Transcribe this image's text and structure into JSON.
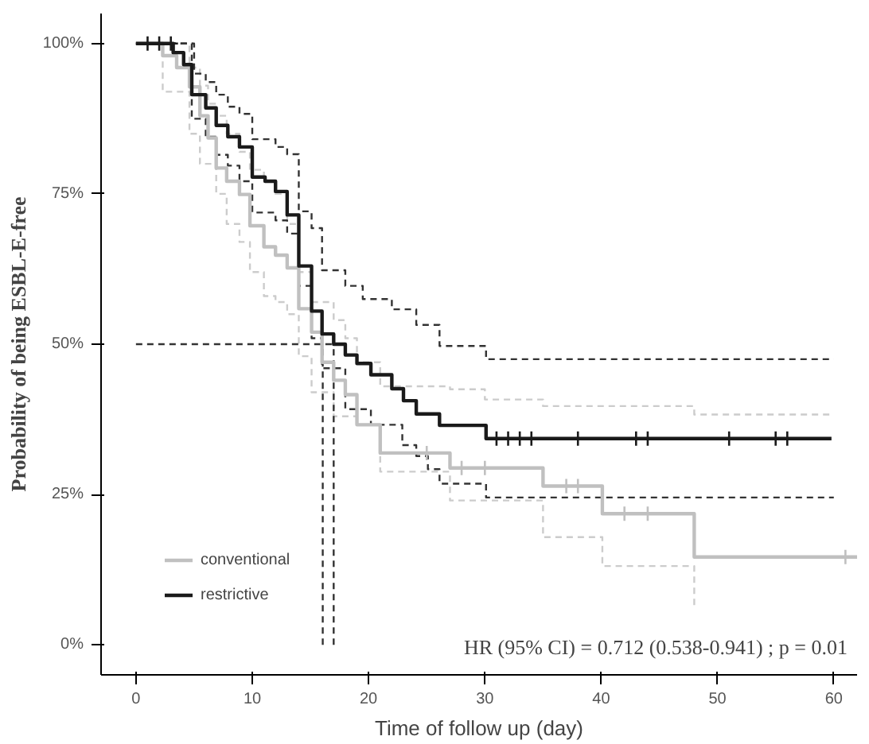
{
  "chart_data": {
    "type": "step",
    "ylabel": "Probability of being ESBL-E-free",
    "xlabel": "Time of follow up (day)",
    "xlim": [
      -3,
      62
    ],
    "ylim": [
      -5,
      105
    ],
    "xticks": [
      0,
      10,
      20,
      30,
      40,
      50,
      60
    ],
    "yticks": [
      {
        "value": 0,
        "label": "0%"
      },
      {
        "value": 25,
        "label": "25%"
      },
      {
        "value": 50,
        "label": "50%"
      },
      {
        "value": 75,
        "label": "75%"
      },
      {
        "value": 100,
        "label": "100%"
      }
    ],
    "grid": false,
    "legend": "bottom left",
    "annotations": [
      "HR (95% CI) = 0.712 (0.538-0.941) ; p = 0.01"
    ],
    "series": [
      {
        "color": "#cccccc",
        "line_style": "dashed",
        "x": [
          0,
          4.6,
          5.5,
          6.2,
          6.9,
          7.8,
          8.9,
          9.8,
          11,
          12,
          13,
          14,
          15.1,
          17,
          18,
          19,
          21,
          27,
          30,
          35,
          48,
          60
        ],
        "values": [
          100,
          96,
          93,
          90,
          88,
          85,
          82,
          79,
          77,
          75,
          70,
          62,
          57,
          54,
          51,
          47,
          43,
          42.5,
          40.8,
          39.7,
          38.3,
          38.3
        ]
      },
      {
        "color": "#cccccc",
        "line_style": "dashed",
        "x": [
          0,
          2.3,
          4.6,
          5.5,
          6.9,
          7.8,
          8.9,
          9.8,
          11,
          12,
          13,
          14,
          15.1,
          17,
          19,
          21,
          27,
          35,
          40.1,
          48,
          48.01
        ],
        "values": [
          100,
          92,
          85,
          80,
          75,
          70,
          67,
          62,
          58,
          57,
          55,
          48,
          42,
          38,
          36.6,
          28.8,
          24,
          17.9,
          13.1,
          6.2,
          6.2
        ]
      },
      {
        "color": "#333333",
        "line_style": "dashed",
        "x": [
          0,
          5.0,
          6.0,
          6.9,
          7.9,
          8.9,
          10.0,
          12.0,
          13.0,
          14.0,
          15.1,
          16.0,
          18.0,
          19.5,
          22.0,
          24.1,
          26.1,
          30.1,
          60
        ],
        "values": [
          100,
          95,
          93.6,
          91.5,
          89.5,
          88.3,
          84.1,
          82.8,
          81.6,
          72.1,
          69.3,
          62.3,
          59.7,
          57.5,
          55.8,
          53.2,
          49.7,
          47.5,
          47.5
        ]
      },
      {
        "color": "#333333",
        "line_style": "dashed",
        "x": [
          0,
          4.8,
          6.0,
          6.9,
          7.9,
          8.9,
          10.0,
          12.0,
          13.0,
          14.0,
          15.1,
          16.0,
          18.0,
          20.2,
          22.9,
          24.1,
          25.1,
          26.1,
          30.1,
          60
        ],
        "values": [
          100,
          87.5,
          84.5,
          81.5,
          79.7,
          77.1,
          71.9,
          70.6,
          68.4,
          59.7,
          51,
          46,
          39.2,
          36.6,
          33.2,
          31.4,
          29.2,
          26.8,
          24.5,
          24.5
        ]
      },
      {
        "type": "line",
        "color": "#333333",
        "line_style": "dashed",
        "x": [
          0,
          17
        ],
        "values": [
          50,
          50
        ]
      },
      {
        "type": "line",
        "color": "#333333",
        "line_style": "dashed",
        "x": [
          16.06,
          16.06
        ],
        "values": [
          0,
          50
        ]
      },
      {
        "type": "line",
        "color": "#333333",
        "line_style": "dashed",
        "x": [
          17.0,
          17.0
        ],
        "values": [
          0,
          50
        ]
      },
      {
        "name": "conventional",
        "color": "#c0c0c0",
        "line_style": "solid",
        "x": [
          0,
          2.3,
          3.5,
          4.6,
          5.5,
          6.2,
          6.9,
          7.8,
          8.9,
          9.8,
          11,
          12,
          13,
          14,
          15.1,
          16,
          17,
          18,
          19,
          21,
          27,
          35,
          40.1,
          48,
          62
        ],
        "values": [
          100,
          98,
          96,
          92.8,
          88,
          84.3,
          79.3,
          77.1,
          74.9,
          69.7,
          66.2,
          64.8,
          62.7,
          55.9,
          52,
          47,
          44,
          41.6,
          36.6,
          31.9,
          29.4,
          26.4,
          21.8,
          14.6,
          14.6
        ]
      },
      {
        "name": "restrictive",
        "color": "#1a1a1a",
        "line_style": "solid",
        "x": [
          0,
          3.2,
          4.1,
          4.8,
          6.0,
          6.9,
          7.9,
          8.9,
          10.0,
          11.1,
          12.0,
          13.0,
          14.0,
          15.1,
          16.0,
          17.0,
          18.0,
          19.0,
          20.2,
          22.0,
          23.0,
          24.1,
          26.1,
          30.1,
          59.8
        ],
        "values": [
          100,
          98.5,
          96.5,
          91.5,
          89.3,
          86.4,
          84.5,
          82.8,
          77.8,
          77.1,
          75.4,
          71.5,
          63,
          55.5,
          51.7,
          50,
          48.2,
          46.8,
          44.9,
          42.6,
          40.6,
          38.4,
          36.5,
          34.3,
          34.3
        ]
      },
      {
        "type": "scatter",
        "marker": "cross",
        "color": "#c0c0c0",
        "x": [
          25,
          28,
          30,
          37,
          38,
          42,
          44,
          61
        ],
        "values": [
          31.9,
          29.4,
          29.4,
          26.4,
          26.4,
          21.8,
          21.8,
          14.6
        ]
      },
      {
        "type": "scatter",
        "marker": "cross",
        "color": "#1a1a1a",
        "x": [
          1,
          2,
          3,
          31,
          32,
          33,
          34,
          38,
          43,
          44,
          51,
          55,
          56
        ],
        "values": [
          100,
          100,
          100,
          34.3,
          34.3,
          34.3,
          34.3,
          34.3,
          34.3,
          34.3,
          34.3,
          34.3,
          34.3
        ]
      }
    ]
  }
}
